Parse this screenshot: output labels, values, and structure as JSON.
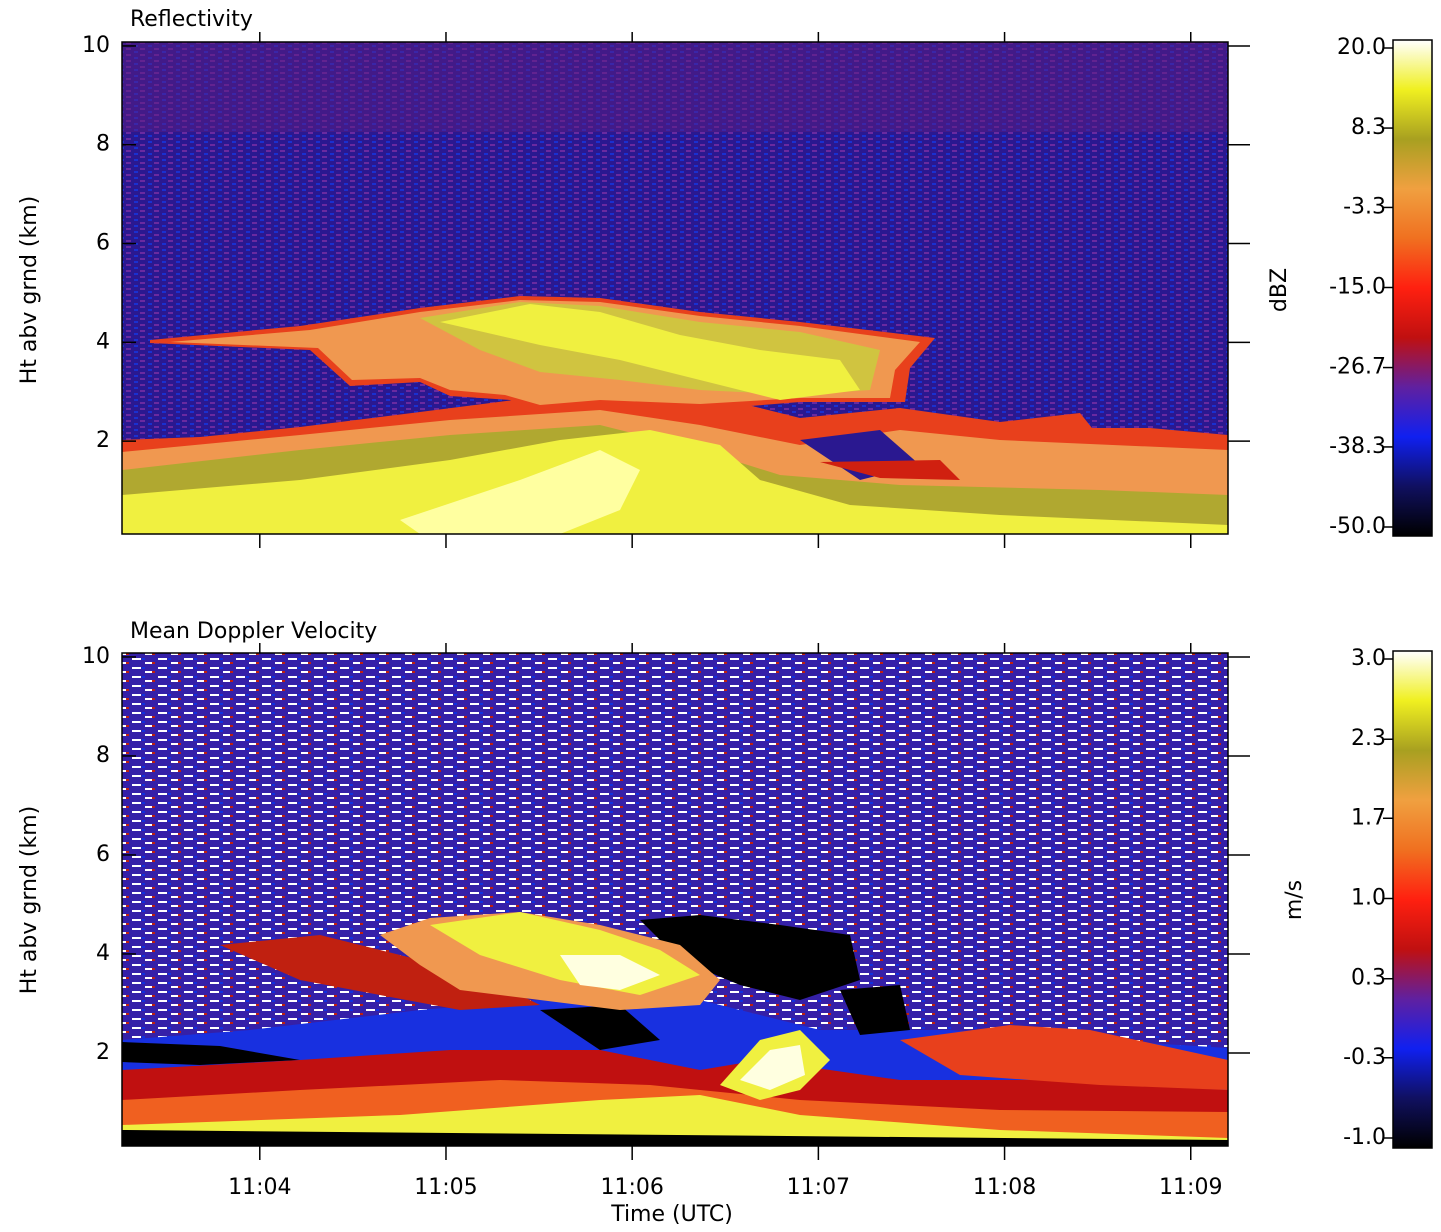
{
  "chart_data": [
    {
      "type": "heatmap",
      "title": "Reflectivity",
      "ylabel": "Ht abv grnd (km)",
      "xlim": [
        663.26,
        669.2
      ],
      "ylim": [
        0.12,
        10.08
      ],
      "yticks": [
        2,
        4,
        6,
        8,
        10
      ],
      "colorbar": {
        "label": "dBZ",
        "lim": [
          -50,
          20
        ],
        "ticks": [
          {
            "value": 20,
            "label": "20.0"
          },
          {
            "value": 8.3,
            "label": "8.3"
          },
          {
            "value": -3.3,
            "label": "-3.3"
          },
          {
            "value": -15,
            "label": "-15.0"
          },
          {
            "value": -26.7,
            "label": "-26.7"
          },
          {
            "value": -38.3,
            "label": "-38.3"
          },
          {
            "value": -50,
            "label": "-50.0"
          }
        ],
        "colors": [
          "#000000",
          "#101060",
          "#1020f0",
          "#6020a0",
          "#c01010",
          "#ff2010",
          "#f07020",
          "#f0a040",
          "#a8a020",
          "#f0f020",
          "#ffffff"
        ]
      }
    },
    {
      "type": "heatmap",
      "title": "Mean Doppler Velocity",
      "ylabel": "Ht abv grnd (km)",
      "xlabel": "Time (UTC)",
      "xlim": [
        663.26,
        669.2
      ],
      "xticks": [
        {
          "value": 664,
          "label": "11:04"
        },
        {
          "value": 665,
          "label": "11:05"
        },
        {
          "value": 666,
          "label": "11:06"
        },
        {
          "value": 667,
          "label": "11:07"
        },
        {
          "value": 668,
          "label": "11:08"
        },
        {
          "value": 669,
          "label": "11:09"
        }
      ],
      "ylim": [
        0.12,
        10.08
      ],
      "yticks": [
        2,
        4,
        6,
        8,
        10
      ],
      "colorbar": {
        "label": "m/s",
        "lim": [
          -1,
          3
        ],
        "ticks": [
          {
            "value": 3,
            "label": "3.0"
          },
          {
            "value": 2.33,
            "label": "2.3"
          },
          {
            "value": 1.67,
            "label": "1.7"
          },
          {
            "value": 1,
            "label": "1.0"
          },
          {
            "value": 0.33,
            "label": "0.3"
          },
          {
            "value": -0.33,
            "label": "-0.3"
          },
          {
            "value": -1,
            "label": "-1.0"
          }
        ],
        "colors": [
          "#000000",
          "#101060",
          "#1020f0",
          "#6020a0",
          "#c01010",
          "#ff2010",
          "#f07020",
          "#f0a040",
          "#a8a020",
          "#f0f020",
          "#ffffff"
        ]
      }
    }
  ]
}
